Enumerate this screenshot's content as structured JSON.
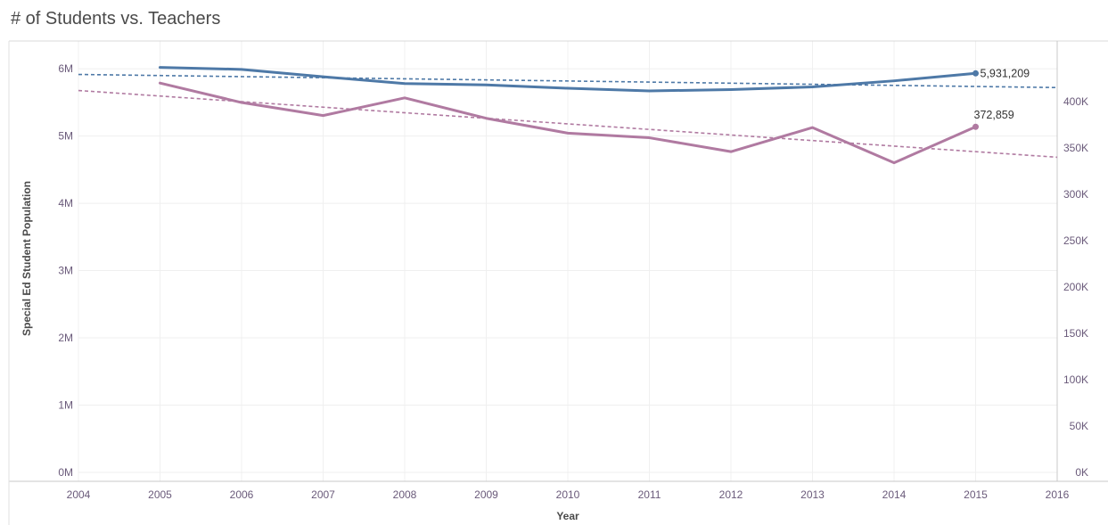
{
  "title": "# of Students vs. Teachers",
  "chart_data": {
    "type": "line",
    "title": "# of Students vs. Teachers",
    "xlabel": "Year",
    "ylabel": "Special Ed Student Population",
    "x": [
      2004,
      2005,
      2006,
      2007,
      2008,
      2009,
      2010,
      2011,
      2012,
      2013,
      2014,
      2015,
      2016
    ],
    "xlim": [
      2004,
      2016
    ],
    "ylim": [
      0,
      6200000
    ],
    "y2lim": [
      0,
      450000
    ],
    "y_ticks": [
      {
        "value": 0,
        "label": "0M"
      },
      {
        "value": 1000000,
        "label": "1M"
      },
      {
        "value": 2000000,
        "label": "2M"
      },
      {
        "value": 3000000,
        "label": "3M"
      },
      {
        "value": 4000000,
        "label": "4M"
      },
      {
        "value": 5000000,
        "label": "5M"
      },
      {
        "value": 6000000,
        "label": "6M"
      }
    ],
    "y2_ticks": [
      {
        "value": 0,
        "label": "0K"
      },
      {
        "value": 50000,
        "label": "50K"
      },
      {
        "value": 100000,
        "label": "100K"
      },
      {
        "value": 150000,
        "label": "150K"
      },
      {
        "value": 200000,
        "label": "200K"
      },
      {
        "value": 250000,
        "label": "250K"
      },
      {
        "value": 300000,
        "label": "300K"
      },
      {
        "value": 350000,
        "label": "350K"
      },
      {
        "value": 400000,
        "label": "400K"
      }
    ],
    "grid": true,
    "series": [
      {
        "axis": "left",
        "color": "#4e79a7",
        "x": [
          2005,
          2006,
          2007,
          2008,
          2009,
          2010,
          2011,
          2012,
          2013,
          2014,
          2015
        ],
        "values": [
          6020000,
          5990000,
          5880000,
          5780000,
          5760000,
          5710000,
          5670000,
          5690000,
          5730000,
          5820000,
          5931209
        ],
        "end_label": "5,931,209",
        "trend": {
          "x": [
            2004,
            2016
          ],
          "values": [
            5915000,
            5720000
          ]
        }
      },
      {
        "axis": "right",
        "color": "#b07aa1",
        "x": [
          2005,
          2006,
          2007,
          2008,
          2009,
          2010,
          2011,
          2012,
          2013,
          2014,
          2015
        ],
        "values": [
          420000,
          399000,
          385000,
          404000,
          382000,
          366000,
          361000,
          346000,
          372000,
          334000,
          372859
        ],
        "end_label": "372,859",
        "trend": {
          "x": [
            2004,
            2016
          ],
          "values": [
            412000,
            340000
          ]
        }
      }
    ]
  }
}
